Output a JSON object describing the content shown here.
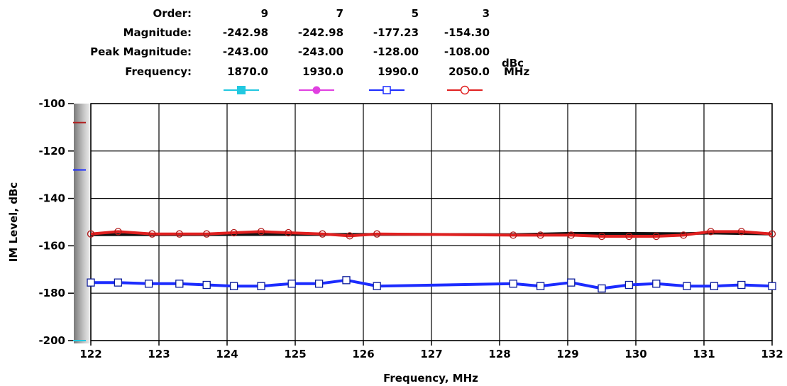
{
  "header": {
    "order_label": "Order:",
    "magnitude_label": "Magnitude:",
    "peak_label": "Peak Magnitude:",
    "frequency_label": "Frequency:",
    "unit_dbc": "dBc",
    "unit_mhz": "MHz",
    "columns": [
      {
        "order": "9",
        "magnitude": "-242.98",
        "peak": "-243.00",
        "frequency": "1870.0"
      },
      {
        "order": "7",
        "magnitude": "-242.98",
        "peak": "-243.00",
        "frequency": "1930.0"
      },
      {
        "order": "5",
        "magnitude": "-177.23",
        "peak": "-128.00",
        "frequency": "1990.0"
      },
      {
        "order": "3",
        "magnitude": "-154.30",
        "peak": "-108.00",
        "frequency": "2050.0"
      }
    ]
  },
  "colors": {
    "order9": "#22c8e0",
    "order7": "#e040e0",
    "order5": "#1c2cff",
    "order3": "#e02020",
    "black_trace": "#111111"
  },
  "chart_data": {
    "type": "line",
    "xlabel": "Frequency, MHz",
    "ylabel": "IM Level, dBc",
    "xlim": [
      122,
      132
    ],
    "ylim": [
      -200,
      -100
    ],
    "xticks": [
      "122",
      "123",
      "124",
      "125",
      "126",
      "127",
      "128",
      "129",
      "130",
      "131",
      "132"
    ],
    "yticks": [
      "-100",
      "-120",
      "-140",
      "-160",
      "-180",
      "-200"
    ],
    "grid": true,
    "side_markers": [
      {
        "color": "#b02020",
        "value": -108
      },
      {
        "color": "#1c2cff",
        "value": -128
      },
      {
        "color": "#22c8e0",
        "value": -200
      }
    ],
    "series": [
      {
        "color": "#111111",
        "marker": "none",
        "x": [
          122,
          126,
          127,
          128.2,
          129,
          129.5,
          130,
          130.7,
          131.1,
          132
        ],
        "y": [
          -155.3,
          -155.2,
          -155.2,
          -155.3,
          -154.8,
          -154.8,
          -154.8,
          -154.9,
          -154.6,
          -155
        ]
      },
      {
        "color": "#e02020",
        "marker": "circle",
        "x": [
          122,
          122.4,
          122.9,
          123.3,
          123.7,
          124.1,
          124.5,
          124.9,
          125.4,
          125.8,
          126.2,
          128.2,
          128.6,
          129.05,
          129.5,
          129.9,
          130.3,
          130.7,
          131.1,
          131.55,
          132
        ],
        "y": [
          -155,
          -154,
          -155,
          -155,
          -155,
          -154.5,
          -154,
          -154.5,
          -155,
          -155.8,
          -155,
          -155.5,
          -155.5,
          -155.5,
          -156,
          -156,
          -156,
          -155.5,
          -154,
          -154,
          -155
        ]
      },
      {
        "color": "#1c2cff",
        "marker": "square",
        "x": [
          122,
          122.4,
          122.85,
          123.3,
          123.7,
          124.1,
          124.5,
          124.95,
          125.35,
          125.75,
          126.2,
          128.2,
          128.6,
          129.05,
          129.5,
          129.9,
          130.3,
          130.75,
          131.15,
          131.55,
          132
        ],
        "y": [
          -175.5,
          -175.5,
          -176,
          -176,
          -176.5,
          -177,
          -177,
          -176,
          -176,
          -174.5,
          -177,
          -176,
          -177,
          -175.5,
          -178,
          -176.5,
          -176,
          -177,
          -177,
          -176.5,
          -177
        ]
      }
    ]
  }
}
